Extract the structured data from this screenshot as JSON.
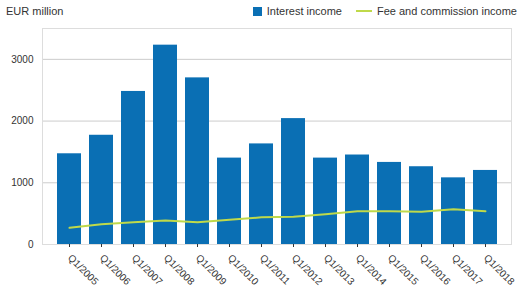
{
  "chart_data": {
    "type": "bar",
    "title": "EUR million",
    "categories": [
      "Q1/2005",
      "Q1/2006",
      "Q1/2007",
      "Q1/2008",
      "Q1/2009",
      "Q1/2010",
      "Q1/2011",
      "Q1/2012",
      "Q1/2013",
      "Q1/2014",
      "Q1/2015",
      "Q1/2016",
      "Q1/2017",
      "Q1/2018"
    ],
    "series": [
      {
        "name": "Interest income",
        "type": "bar",
        "color": "#0a6fb4",
        "values": [
          1470,
          1770,
          2480,
          3230,
          2700,
          1400,
          1630,
          2040,
          1400,
          1450,
          1330,
          1260,
          1080,
          1200
        ]
      },
      {
        "name": "Fee and commission income",
        "type": "line",
        "color": "#bfd94a",
        "values": [
          270,
          330,
          360,
          390,
          360,
          400,
          440,
          450,
          490,
          540,
          540,
          530,
          570,
          540
        ]
      }
    ],
    "ylim": [
      0,
      3500
    ],
    "yticks": [
      0,
      1000,
      2000,
      3000
    ],
    "grid": true,
    "legend": "top-right"
  }
}
